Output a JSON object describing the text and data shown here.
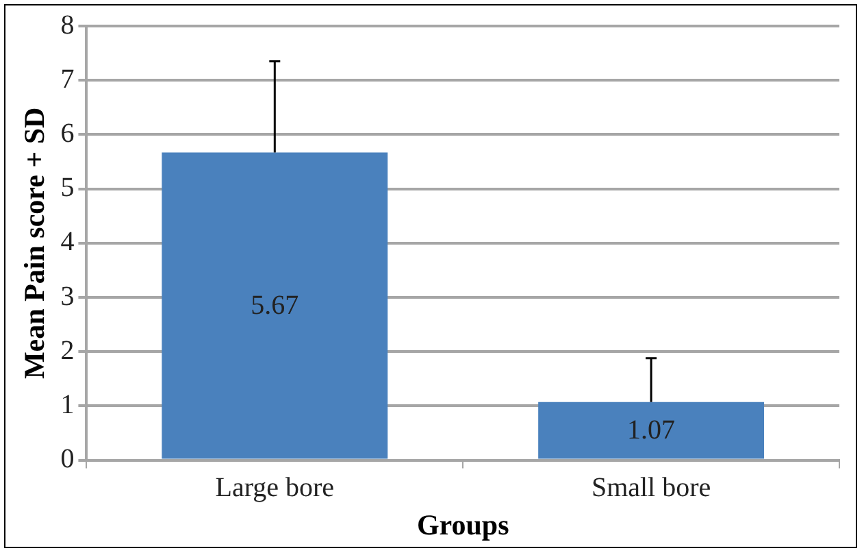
{
  "chart_data": {
    "type": "bar",
    "xlabel": "Groups",
    "ylabel": "Mean Pain score + SD",
    "categories": [
      "Large bore",
      "Small bore"
    ],
    "values": [
      5.67,
      1.07
    ],
    "color": "#4a81bd",
    "errors": [
      [
        5.67,
        7.35
      ],
      [
        1.07,
        1.88
      ]
    ],
    "ylim": [
      0,
      8
    ],
    "yticks": [
      0,
      1,
      2,
      3,
      4,
      5,
      6,
      7,
      8
    ],
    "grid": "y",
    "legend": false,
    "data_labels": true
  }
}
